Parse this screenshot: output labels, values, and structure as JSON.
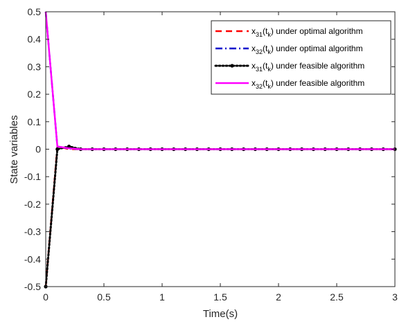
{
  "chart_data": {
    "type": "line",
    "title": "",
    "xlabel": "Time(s)",
    "ylabel": "State variables",
    "xlim": [
      0,
      3
    ],
    "ylim": [
      -0.5,
      0.5
    ],
    "xticks": [
      "0",
      "0.5",
      "1",
      "1.5",
      "2",
      "2.5",
      "3"
    ],
    "yticks": [
      "-0.5",
      "-0.4",
      "-0.3",
      "-0.2",
      "-0.1",
      "0",
      "0.1",
      "0.2",
      "0.3",
      "0.4",
      "0.5"
    ],
    "grid": false,
    "legend_position": "top-right",
    "series": [
      {
        "name_parts": [
          "x",
          "31",
          "(t",
          "k",
          ") under optimal algorithm"
        ],
        "color": "#ff0000",
        "style": "dashed",
        "marker": "none",
        "x": [
          0,
          0.1,
          0.2,
          0.3,
          3
        ],
        "y": [
          -0.5,
          0.01,
          0.0,
          0.0,
          0.0
        ]
      },
      {
        "name_parts": [
          "x",
          "32",
          "(t",
          "k",
          ") under optimal algorithm"
        ],
        "color": "#0000cc",
        "style": "dashdot",
        "marker": "none",
        "x": [
          0,
          0.1,
          0.2,
          0.3,
          3
        ],
        "y": [
          0.5,
          0.01,
          0.002,
          0.0,
          0.0
        ]
      },
      {
        "name_parts": [
          "x",
          "31",
          "(t",
          "k",
          ") under feasible algorithm"
        ],
        "color": "#000000",
        "style": "dotted",
        "marker": "circle",
        "x": [
          0,
          0.1,
          0.2,
          0.3,
          0.4,
          0.5,
          0.6,
          0.7,
          0.8,
          0.9,
          1.0,
          1.1,
          1.2,
          1.3,
          1.4,
          1.5,
          1.6,
          1.7,
          1.8,
          1.9,
          2.0,
          2.1,
          2.2,
          2.3,
          2.4,
          2.5,
          2.6,
          2.7,
          2.8,
          2.9,
          3.0
        ],
        "y": [
          -0.5,
          0.0,
          0.01,
          0.0,
          0.0,
          0.0,
          0.0,
          0.0,
          0.0,
          0.0,
          0.0,
          0.0,
          0.0,
          0.0,
          0.0,
          0.0,
          0.0,
          0.0,
          0.0,
          0.0,
          0.0,
          0.0,
          0.0,
          0.0,
          0.0,
          0.0,
          0.0,
          0.0,
          0.0,
          0.0,
          0.0
        ]
      },
      {
        "name_parts": [
          "x",
          "32",
          "(t",
          "k",
          ") under feasible algorithm"
        ],
        "color": "#ff00ff",
        "style": "solid",
        "marker": "none",
        "x": [
          0,
          0.1,
          0.2,
          0.3,
          3
        ],
        "y": [
          0.5,
          0.01,
          0.003,
          0.0,
          0.0
        ]
      }
    ]
  }
}
